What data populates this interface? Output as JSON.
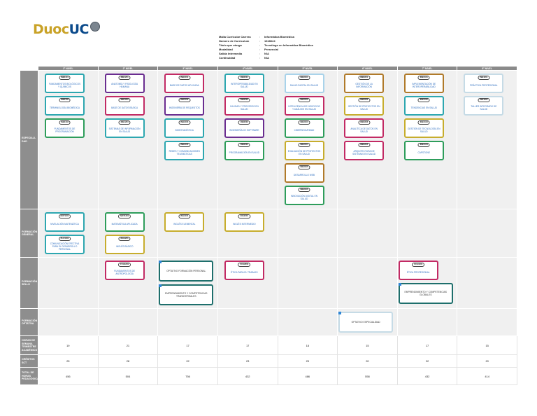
{
  "logo": {
    "duoc": "Duoc",
    "uc": "UC"
  },
  "meta": [
    {
      "key": "Malla Curricular Carrera",
      "sep": ":",
      "value": "Informática Biomédica"
    },
    {
      "key": "Número de Currículum",
      "sep": ":",
      "value": "1318624"
    },
    {
      "key": "Título que otorga",
      "sep": ":",
      "value": "Tecnólogo en Informática Biomédica"
    },
    {
      "key": "Modalidad",
      "sep": ":",
      "value": "Presencial"
    },
    {
      "key": "Salida Intermedia",
      "sep": ":",
      "value": "N/A"
    },
    {
      "key": "Continuidad",
      "sep": ":",
      "value": "N/A"
    }
  ],
  "semesters": [
    "1° NIVEL",
    "2° NIVEL",
    "3° NIVEL",
    "4° NIVEL",
    "5° NIVEL",
    "6° NIVEL",
    "7° NIVEL",
    "8° NIVEL"
  ],
  "row_labels": {
    "especialidad": "ESPECIALI-DAD",
    "general": "FORMACIÓN GENERAL",
    "sello": "FORMACIÓN SELLO",
    "opcional": "FORMACIÓN OPTATIVA",
    "horas": "HORAS DE SEMANA TRIMESTRE ACADÉMICO",
    "creditos": "CRÉDITOS SCT",
    "total": "TOTAL DE HORAS PEDAGÓGICAS"
  },
  "courses": {
    "especialidad": [
      [
        {
          "code": "INB1101",
          "name": "FUNDAMENTOS BIOLÓGICOS Y QUÍMICOS",
          "color": "teal"
        },
        {
          "code": "INB1102",
          "name": "TERMINOLOGÍA BIOMÉDICA",
          "color": "teal"
        },
        {
          "code": "INB1103",
          "name": "FUNDAMENTOS DE PROGRAMACIÓN",
          "color": "green"
        }
      ],
      [
        {
          "code": "INB1201",
          "name": "ANATOMÍA Y FISIOLOGÍA HUMANA",
          "color": "purple"
        },
        {
          "code": "INB1202",
          "name": "BASE DE DATOS BÁSICA",
          "color": "pink"
        },
        {
          "code": "INB1203",
          "name": "SISTEMAS DE INFORMACIÓN EN SALUD",
          "color": "teal"
        }
      ],
      [
        {
          "code": "INB2101",
          "name": "BASE DE DATOS APLICADA",
          "color": "pink"
        },
        {
          "code": "INB2102",
          "name": "INGENIERÍA DE REQUISITOS",
          "color": "purple"
        },
        {
          "code": "INB2103",
          "name": "BIOESTADÍSTICA",
          "color": "teal"
        },
        {
          "code": "INB2104",
          "name": "REDES Y COMUNICACIONES TELEMÁTICAS",
          "color": "teal"
        }
      ],
      [
        {
          "code": "INB2201",
          "name": "INTEROPERABILIDAD EN SALUD",
          "color": "teal"
        },
        {
          "code": "INB2202",
          "name": "CALIDAD Y PROCESOS EN SALUD",
          "color": "pink"
        },
        {
          "code": "INB2203",
          "name": "INGENIERÍA DE SOFTWARE",
          "color": "purple"
        },
        {
          "code": "INB2204",
          "name": "PROGRAMACIÓN EN SALUD",
          "color": "green"
        }
      ],
      [
        {
          "code": "INB3101",
          "name": "SALUD DIGITAL EN SALUD",
          "color": "sky"
        },
        {
          "code": "INB3102",
          "name": "INTELIGENCIA DE NEGOCIOS Y ANÁLISIS EN SALUD",
          "color": "pink"
        },
        {
          "code": "INB3103",
          "name": "CIBERSEGURIDAD",
          "color": "green"
        },
        {
          "code": "INB3104",
          "name": "EVALUACIÓN DE PROYECTOS EN SALUD",
          "color": "olive"
        },
        {
          "code": "INB3105",
          "name": "DESARROLLO WEB",
          "color": "brown"
        },
        {
          "code": "INB3106",
          "name": "INNOVACIÓN DIGITAL EN SALUD",
          "color": "green"
        }
      ],
      [
        {
          "code": "INB3201",
          "name": "GESTIÓN DE LA INFORMACIÓN",
          "color": "brown"
        },
        {
          "code": "INB3202",
          "name": "GESTIÓN DE PROYECTOS EN SALUD",
          "color": "olive"
        },
        {
          "code": "INB3203",
          "name": "ANALÍTICA DE DATOS EN SALUD",
          "color": "pink"
        },
        {
          "code": "INB3204",
          "name": "ARQUITECTURA DE SISTEMAS EN SALUD",
          "color": "pink"
        }
      ],
      [
        {
          "code": "INB4101",
          "name": "IMPLEMENTACIÓN DE INTEROPERABILIDAD",
          "color": "brown"
        },
        {
          "code": "INB4102",
          "name": "TENDENCIAS EN SALUD",
          "color": "teal"
        },
        {
          "code": "INB4103",
          "name": "GESTIÓN DE TECNOLOGÍA EN SALUD",
          "color": "olive"
        },
        {
          "code": "INB4104",
          "name": "CAPSTONE",
          "color": "green"
        }
      ],
      [
        {
          "code": "INB4201",
          "name": "PRÁCTICA PROFESIONAL",
          "color": "light"
        },
        {
          "code": "INB4202",
          "name": "TALLER INTEGRADO DE SALUD",
          "color": "light"
        }
      ]
    ],
    "general": [
      [
        {
          "code": "MAT1101",
          "name": "NIVELACIÓN MATEMÁTICA",
          "color": "teal"
        },
        {
          "code": "PLC1101",
          "name": "COMUNICACIÓN EFECTIVA PARA EL DESARROLLO PERSONAL",
          "color": "teal"
        }
      ],
      [
        {
          "code": "MAT1201",
          "name": "MATEMÁTICA APLICADA",
          "color": "green"
        },
        {
          "code": "ING1201",
          "name": "INGLÉS BÁSICO",
          "color": "olive"
        }
      ],
      [
        {
          "code": "ING2101",
          "name": "INGLÉS ELEMENTAL",
          "color": "olive"
        }
      ],
      [
        {
          "code": "ING2201",
          "name": "INGLÉS INTERMEDIO",
          "color": "olive"
        }
      ],
      [],
      [],
      [],
      []
    ],
    "sello": [
      [],
      [
        {
          "code": "FCA1201",
          "name": "FUNDAMENTOS DE ANTROPOLOGÍA",
          "color": "pink"
        }
      ],
      [
        {
          "code": "",
          "name": "OPTATIVO FORMACIÓN PERSONAL",
          "color": "dteal",
          "wide": true
        },
        {
          "code": "",
          "name": "EMPRENDIMIENTO Y COMPETENCIAS TRANSVERSALES",
          "color": "dteal",
          "wide": true
        }
      ],
      [
        {
          "code": "FCA2201",
          "name": "ÉTICA PARA EL TRABAJO",
          "color": "pink"
        }
      ],
      [],
      [],
      [
        {
          "code": "FCA4101",
          "name": "ÉTICA PROFESIONAL",
          "color": "pink"
        },
        {
          "code": "",
          "name": "EMPRENDIMIENTO Y COMPETENCIAS GLOBALES",
          "color": "dteal",
          "wide": true
        }
      ],
      []
    ],
    "opcional": [
      [],
      [],
      [],
      [],
      [],
      [
        {
          "code": "",
          "name": "OPTATIVO ESPECIALIDAD",
          "color": "light",
          "wide": true
        }
      ],
      [],
      []
    ]
  },
  "stats": {
    "horas": [
      "19",
      "21",
      "17",
      "17",
      "18",
      "15",
      "17",
      "15"
    ],
    "creditos": [
      "25",
      "28",
      "22",
      "23",
      "25",
      "20",
      "22",
      "20"
    ],
    "total": [
      "456",
      "504",
      "756",
      "432",
      "486",
      "558",
      "432",
      "414"
    ]
  }
}
